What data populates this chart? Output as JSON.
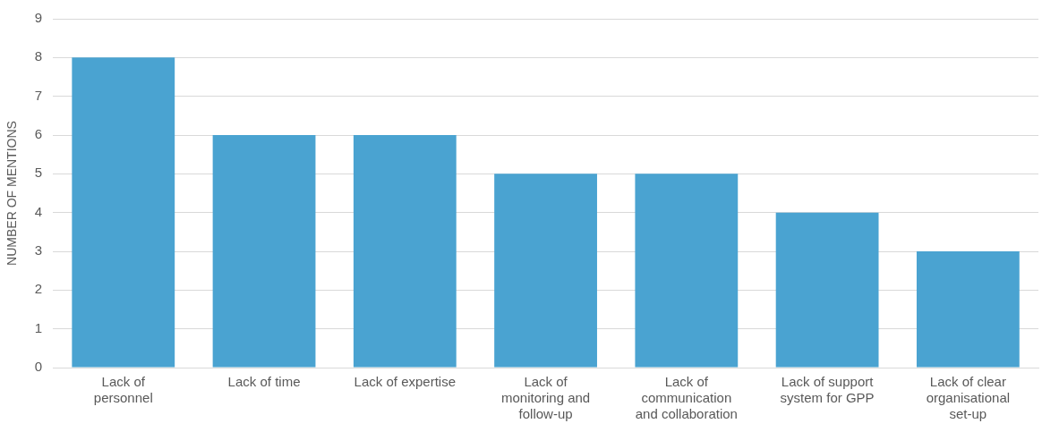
{
  "chart_data": {
    "type": "bar",
    "ylabel": "NUMBER OF MENTIONS",
    "categories": [
      "Lack of personnel",
      "Lack of time",
      "Lack of expertise",
      "Lack of monitoring and follow-up",
      "Lack of communication and collaboration",
      "Lack of support system for GPP",
      "Lack of clear organisational set-up"
    ],
    "values": [
      8,
      6,
      6,
      5,
      5,
      4,
      3
    ],
    "color": "#4aa3d1",
    "ylim": [
      0,
      9
    ],
    "yticks": [
      0,
      1,
      2,
      3,
      4,
      5,
      6,
      7,
      8,
      9
    ],
    "grid": "y"
  }
}
